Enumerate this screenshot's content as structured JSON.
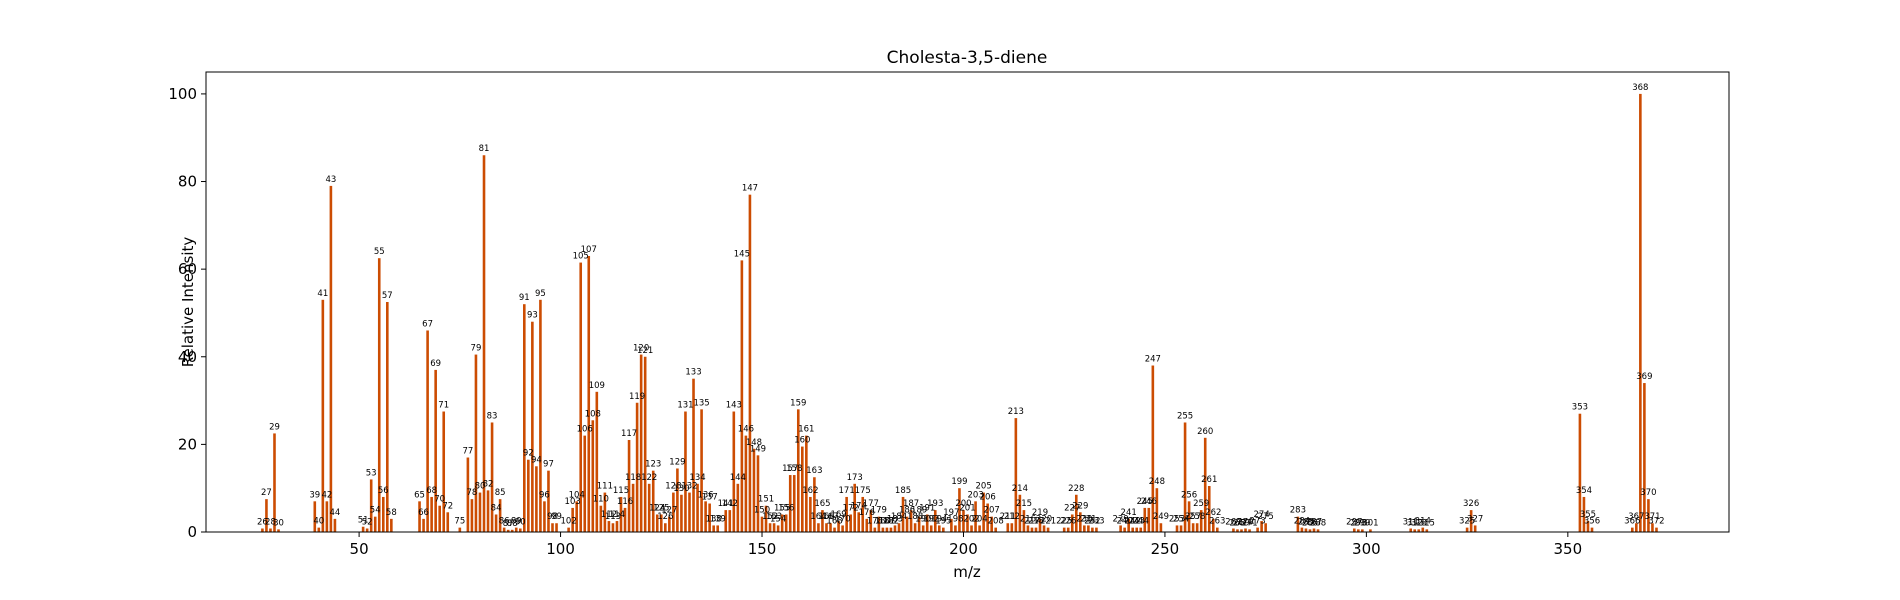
{
  "chart_data": {
    "type": "bar",
    "title": "Cholesta-3,5-diene",
    "xlabel": "m/z",
    "ylabel": "Relative Intensity",
    "xlim": [
      12,
      390
    ],
    "ylim": [
      0,
      105
    ],
    "xticks": [
      50,
      100,
      150,
      200,
      250,
      300,
      350
    ],
    "yticks": [
      0,
      20,
      40,
      60,
      80,
      100
    ],
    "grid": false,
    "bar_color": "#cc4c02",
    "peaks": [
      {
        "mz": 26,
        "y": 0.8
      },
      {
        "mz": 27,
        "y": 7.5
      },
      {
        "mz": 28,
        "y": 0.8
      },
      {
        "mz": 29,
        "y": 22.5
      },
      {
        "mz": 30,
        "y": 0.6
      },
      {
        "mz": 39,
        "y": 7
      },
      {
        "mz": 40,
        "y": 1
      },
      {
        "mz": 41,
        "y": 53
      },
      {
        "mz": 42,
        "y": 7
      },
      {
        "mz": 43,
        "y": 79
      },
      {
        "mz": 44,
        "y": 3
      },
      {
        "mz": 51,
        "y": 1.2
      },
      {
        "mz": 52,
        "y": 0.8
      },
      {
        "mz": 53,
        "y": 12
      },
      {
        "mz": 54,
        "y": 3.5
      },
      {
        "mz": 55,
        "y": 62.5
      },
      {
        "mz": 56,
        "y": 8
      },
      {
        "mz": 57,
        "y": 52.5
      },
      {
        "mz": 58,
        "y": 3
      },
      {
        "mz": 65,
        "y": 7
      },
      {
        "mz": 66,
        "y": 3
      },
      {
        "mz": 67,
        "y": 46
      },
      {
        "mz": 68,
        "y": 8
      },
      {
        "mz": 69,
        "y": 37
      },
      {
        "mz": 70,
        "y": 6
      },
      {
        "mz": 71,
        "y": 27.5
      },
      {
        "mz": 72,
        "y": 4.5
      },
      {
        "mz": 75,
        "y": 1
      },
      {
        "mz": 77,
        "y": 17
      },
      {
        "mz": 78,
        "y": 7.5
      },
      {
        "mz": 79,
        "y": 40.5
      },
      {
        "mz": 80,
        "y": 9
      },
      {
        "mz": 81,
        "y": 86
      },
      {
        "mz": 82,
        "y": 9.5
      },
      {
        "mz": 83,
        "y": 25
      },
      {
        "mz": 84,
        "y": 4
      },
      {
        "mz": 85,
        "y": 7.5
      },
      {
        "mz": 86,
        "y": 1
      },
      {
        "mz": 87,
        "y": 0.5
      },
      {
        "mz": 88,
        "y": 0.5
      },
      {
        "mz": 89,
        "y": 1
      },
      {
        "mz": 90,
        "y": 0.8
      },
      {
        "mz": 91,
        "y": 52
      },
      {
        "mz": 92,
        "y": 16.5
      },
      {
        "mz": 93,
        "y": 48
      },
      {
        "mz": 94,
        "y": 15
      },
      {
        "mz": 95,
        "y": 53
      },
      {
        "mz": 96,
        "y": 7
      },
      {
        "mz": 97,
        "y": 14
      },
      {
        "mz": 98,
        "y": 2
      },
      {
        "mz": 99,
        "y": 2
      },
      {
        "mz": 102,
        "y": 1
      },
      {
        "mz": 103,
        "y": 5.5
      },
      {
        "mz": 104,
        "y": 7
      },
      {
        "mz": 105,
        "y": 61.5
      },
      {
        "mz": 106,
        "y": 22
      },
      {
        "mz": 107,
        "y": 63
      },
      {
        "mz": 108,
        "y": 25.5
      },
      {
        "mz": 109,
        "y": 32
      },
      {
        "mz": 110,
        "y": 6
      },
      {
        "mz": 111,
        "y": 9
      },
      {
        "mz": 112,
        "y": 2.5
      },
      {
        "mz": 113,
        "y": 2
      },
      {
        "mz": 114,
        "y": 2.5
      },
      {
        "mz": 115,
        "y": 8
      },
      {
        "mz": 116,
        "y": 5.5
      },
      {
        "mz": 117,
        "y": 21
      },
      {
        "mz": 118,
        "y": 11
      },
      {
        "mz": 119,
        "y": 29.5
      },
      {
        "mz": 120,
        "y": 40.5
      },
      {
        "mz": 121,
        "y": 40
      },
      {
        "mz": 122,
        "y": 11
      },
      {
        "mz": 123,
        "y": 14
      },
      {
        "mz": 124,
        "y": 4
      },
      {
        "mz": 125,
        "y": 4
      },
      {
        "mz": 126,
        "y": 2
      },
      {
        "mz": 127,
        "y": 3.5
      },
      {
        "mz": 128,
        "y": 9
      },
      {
        "mz": 129,
        "y": 14.5
      },
      {
        "mz": 130,
        "y": 8.5
      },
      {
        "mz": 131,
        "y": 27.5
      },
      {
        "mz": 132,
        "y": 9
      },
      {
        "mz": 133,
        "y": 35
      },
      {
        "mz": 134,
        "y": 11
      },
      {
        "mz": 135,
        "y": 28
      },
      {
        "mz": 136,
        "y": 7
      },
      {
        "mz": 137,
        "y": 6.5
      },
      {
        "mz": 138,
        "y": 1.5
      },
      {
        "mz": 139,
        "y": 1.5
      },
      {
        "mz": 141,
        "y": 5
      },
      {
        "mz": 142,
        "y": 5
      },
      {
        "mz": 143,
        "y": 27.5
      },
      {
        "mz": 144,
        "y": 11
      },
      {
        "mz": 145,
        "y": 62
      },
      {
        "mz": 146,
        "y": 22
      },
      {
        "mz": 147,
        "y": 77
      },
      {
        "mz": 148,
        "y": 19
      },
      {
        "mz": 149,
        "y": 17.5
      },
      {
        "mz": 150,
        "y": 3.5
      },
      {
        "mz": 151,
        "y": 6
      },
      {
        "mz": 152,
        "y": 2
      },
      {
        "mz": 153,
        "y": 2
      },
      {
        "mz": 154,
        "y": 1.5
      },
      {
        "mz": 155,
        "y": 4
      },
      {
        "mz": 156,
        "y": 4
      },
      {
        "mz": 157,
        "y": 13
      },
      {
        "mz": 158,
        "y": 13
      },
      {
        "mz": 159,
        "y": 28
      },
      {
        "mz": 160,
        "y": 19.5
      },
      {
        "mz": 161,
        "y": 22
      },
      {
        "mz": 162,
        "y": 8
      },
      {
        "mz": 163,
        "y": 12.5
      },
      {
        "mz": 164,
        "y": 2
      },
      {
        "mz": 165,
        "y": 5
      },
      {
        "mz": 166,
        "y": 2
      },
      {
        "mz": 167,
        "y": 2
      },
      {
        "mz": 168,
        "y": 1
      },
      {
        "mz": 169,
        "y": 2.5
      },
      {
        "mz": 170,
        "y": 1.5
      },
      {
        "mz": 171,
        "y": 8
      },
      {
        "mz": 172,
        "y": 4
      },
      {
        "mz": 173,
        "y": 11
      },
      {
        "mz": 174,
        "y": 4.5
      },
      {
        "mz": 175,
        "y": 8
      },
      {
        "mz": 176,
        "y": 3
      },
      {
        "mz": 177,
        "y": 5
      },
      {
        "mz": 178,
        "y": 1
      },
      {
        "mz": 179,
        "y": 3.5
      },
      {
        "mz": 180,
        "y": 1
      },
      {
        "mz": 181,
        "y": 1
      },
      {
        "mz": 182,
        "y": 1
      },
      {
        "mz": 183,
        "y": 1.5
      },
      {
        "mz": 184,
        "y": 2
      },
      {
        "mz": 185,
        "y": 8
      },
      {
        "mz": 186,
        "y": 3.5
      },
      {
        "mz": 187,
        "y": 5
      },
      {
        "mz": 188,
        "y": 2
      },
      {
        "mz": 189,
        "y": 3.5
      },
      {
        "mz": 190,
        "y": 1.5
      },
      {
        "mz": 191,
        "y": 4
      },
      {
        "mz": 192,
        "y": 1.5
      },
      {
        "mz": 193,
        "y": 5
      },
      {
        "mz": 194,
        "y": 1.5
      },
      {
        "mz": 195,
        "y": 1
      },
      {
        "mz": 197,
        "y": 3
      },
      {
        "mz": 198,
        "y": 1.5
      },
      {
        "mz": 199,
        "y": 10
      },
      {
        "mz": 200,
        "y": 5
      },
      {
        "mz": 201,
        "y": 4
      },
      {
        "mz": 202,
        "y": 1.5
      },
      {
        "mz": 203,
        "y": 7
      },
      {
        "mz": 204,
        "y": 1.5
      },
      {
        "mz": 205,
        "y": 9
      },
      {
        "mz": 206,
        "y": 6.5
      },
      {
        "mz": 207,
        "y": 3.5
      },
      {
        "mz": 208,
        "y": 1
      },
      {
        "mz": 211,
        "y": 2
      },
      {
        "mz": 212,
        "y": 2
      },
      {
        "mz": 213,
        "y": 26
      },
      {
        "mz": 214,
        "y": 8.5
      },
      {
        "mz": 215,
        "y": 5
      },
      {
        "mz": 216,
        "y": 1.5
      },
      {
        "mz": 217,
        "y": 1
      },
      {
        "mz": 218,
        "y": 1
      },
      {
        "mz": 219,
        "y": 3
      },
      {
        "mz": 220,
        "y": 1.5
      },
      {
        "mz": 221,
        "y": 1
      },
      {
        "mz": 225,
        "y": 1
      },
      {
        "mz": 226,
        "y": 1
      },
      {
        "mz": 227,
        "y": 4
      },
      {
        "mz": 228,
        "y": 8.5
      },
      {
        "mz": 229,
        "y": 4.5
      },
      {
        "mz": 230,
        "y": 1.5
      },
      {
        "mz": 231,
        "y": 1.5
      },
      {
        "mz": 232,
        "y": 1
      },
      {
        "mz": 233,
        "y": 1
      },
      {
        "mz": 239,
        "y": 1.5
      },
      {
        "mz": 240,
        "y": 1
      },
      {
        "mz": 241,
        "y": 3
      },
      {
        "mz": 242,
        "y": 1
      },
      {
        "mz": 243,
        "y": 1
      },
      {
        "mz": 244,
        "y": 1
      },
      {
        "mz": 245,
        "y": 5.5
      },
      {
        "mz": 246,
        "y": 5.5
      },
      {
        "mz": 247,
        "y": 38
      },
      {
        "mz": 248,
        "y": 10
      },
      {
        "mz": 249,
        "y": 2
      },
      {
        "mz": 253,
        "y": 1.5
      },
      {
        "mz": 254,
        "y": 1.5
      },
      {
        "mz": 255,
        "y": 25
      },
      {
        "mz": 256,
        "y": 7
      },
      {
        "mz": 257,
        "y": 2
      },
      {
        "mz": 258,
        "y": 2
      },
      {
        "mz": 259,
        "y": 5
      },
      {
        "mz": 260,
        "y": 21.5
      },
      {
        "mz": 261,
        "y": 10.5
      },
      {
        "mz": 262,
        "y": 3
      },
      {
        "mz": 263,
        "y": 1
      },
      {
        "mz": 267,
        "y": 0.8
      },
      {
        "mz": 268,
        "y": 0.6
      },
      {
        "mz": 269,
        "y": 0.6
      },
      {
        "mz": 270,
        "y": 0.8
      },
      {
        "mz": 271,
        "y": 0.6
      },
      {
        "mz": 273,
        "y": 1
      },
      {
        "mz": 274,
        "y": 2.5
      },
      {
        "mz": 275,
        "y": 2
      },
      {
        "mz": 283,
        "y": 3.5
      },
      {
        "mz": 284,
        "y": 1
      },
      {
        "mz": 285,
        "y": 0.8
      },
      {
        "mz": 286,
        "y": 0.6
      },
      {
        "mz": 287,
        "y": 0.8
      },
      {
        "mz": 288,
        "y": 0.6
      },
      {
        "mz": 297,
        "y": 0.8
      },
      {
        "mz": 298,
        "y": 0.6
      },
      {
        "mz": 299,
        "y": 0.6
      },
      {
        "mz": 301,
        "y": 0.6
      },
      {
        "mz": 311,
        "y": 0.8
      },
      {
        "mz": 312,
        "y": 0.6
      },
      {
        "mz": 313,
        "y": 0.6
      },
      {
        "mz": 314,
        "y": 1
      },
      {
        "mz": 315,
        "y": 0.6
      },
      {
        "mz": 325,
        "y": 1
      },
      {
        "mz": 326,
        "y": 5
      },
      {
        "mz": 327,
        "y": 1.5
      },
      {
        "mz": 353,
        "y": 27
      },
      {
        "mz": 354,
        "y": 8
      },
      {
        "mz": 355,
        "y": 2.5
      },
      {
        "mz": 356,
        "y": 1
      },
      {
        "mz": 366,
        "y": 1
      },
      {
        "mz": 367,
        "y": 2
      },
      {
        "mz": 368,
        "y": 100
      },
      {
        "mz": 369,
        "y": 34
      },
      {
        "mz": 370,
        "y": 7.5
      },
      {
        "mz": 371,
        "y": 2
      },
      {
        "mz": 372,
        "y": 1
      }
    ]
  }
}
